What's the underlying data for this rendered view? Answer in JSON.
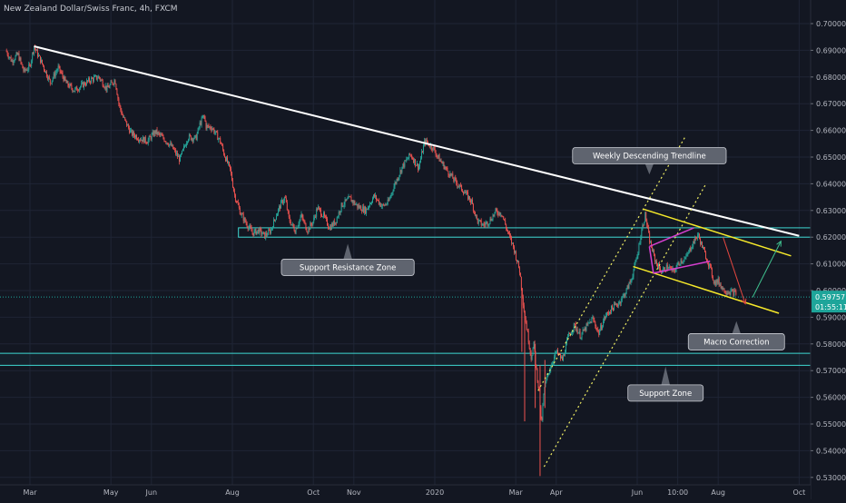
{
  "header": {
    "symbol_title": "New Zealand Dollar/Swiss Franc, 4h, FXCM"
  },
  "colors": {
    "background": "#131722",
    "grid": "#1f2535",
    "candle_up": "#26a69a",
    "candle_down": "#ef5350",
    "trendline": "#ffffff",
    "zone_line": "#3fd8d3",
    "channel_dotted": "#f0ee63",
    "channel_solid": "#f5e82a",
    "flag": "#d63fd0",
    "arrow_down": "#e2463f",
    "arrow_up": "#3fbf8e",
    "price_tag": "#1ea59a",
    "label_box": "#5f646f",
    "axis_text": "#b4b7c0"
  },
  "chart_data": {
    "type": "candlestick",
    "title": "New Zealand Dollar/Swiss Franc, 4h, FXCM",
    "ylim": [
      0.5293,
      0.7072
    ],
    "y_ticks": [
      "0.70000",
      "0.69000",
      "0.68000",
      "0.67000",
      "0.66000",
      "0.65000",
      "0.64000",
      "0.63000",
      "0.62000",
      "0.61000",
      "0.60000",
      "0.59000",
      "0.58000",
      "0.57000",
      "0.56000",
      "0.55000",
      "0.54000",
      "0.53000"
    ],
    "y_tick_values": [
      0.7,
      0.69,
      0.68,
      0.67,
      0.66,
      0.65,
      0.64,
      0.63,
      0.62,
      0.61,
      0.6,
      0.59,
      0.58,
      0.57,
      0.56,
      0.55,
      0.54,
      0.53
    ],
    "x_ticks": [
      {
        "label": "Mar",
        "t": 0.0
      },
      {
        "label": "May",
        "t": 2.0
      },
      {
        "label": "Jun",
        "t": 3.0
      },
      {
        "label": "Aug",
        "t": 5.0
      },
      {
        "label": "Oct",
        "t": 7.0
      },
      {
        "label": "Nov",
        "t": 8.0
      },
      {
        "label": "2020",
        "t": 10.0
      },
      {
        "label": "Mar",
        "t": 12.0
      },
      {
        "label": "Apr",
        "t": 13.0
      },
      {
        "label": "Jun",
        "t": 15.0
      },
      {
        "label": "10:00",
        "t": 16.0
      },
      {
        "label": "Aug",
        "t": 17.0
      },
      {
        "label": "Oct",
        "t": 19.0
      }
    ],
    "price_path": [
      [
        -0.6,
        0.69
      ],
      [
        -0.45,
        0.686
      ],
      [
        -0.3,
        0.6885
      ],
      [
        -0.15,
        0.682
      ],
      [
        0.0,
        0.684
      ],
      [
        0.1,
        0.6915
      ],
      [
        0.3,
        0.685
      ],
      [
        0.5,
        0.678
      ],
      [
        0.7,
        0.6835
      ],
      [
        0.9,
        0.6775
      ],
      [
        1.1,
        0.675
      ],
      [
        1.3,
        0.677
      ],
      [
        1.5,
        0.679
      ],
      [
        1.7,
        0.68
      ],
      [
        1.9,
        0.6755
      ],
      [
        2.1,
        0.679
      ],
      [
        2.2,
        0.6695
      ],
      [
        2.3,
        0.665
      ],
      [
        2.5,
        0.659
      ],
      [
        2.7,
        0.657
      ],
      [
        2.9,
        0.656
      ],
      [
        3.1,
        0.6595
      ],
      [
        3.3,
        0.657
      ],
      [
        3.5,
        0.654
      ],
      [
        3.7,
        0.649
      ],
      [
        3.9,
        0.6575
      ],
      [
        4.1,
        0.657
      ],
      [
        4.2,
        0.6625
      ],
      [
        4.3,
        0.6655
      ],
      [
        4.35,
        0.6615
      ],
      [
        4.5,
        0.661
      ],
      [
        4.6,
        0.6585
      ],
      [
        4.7,
        0.656
      ],
      [
        4.8,
        0.651
      ],
      [
        4.95,
        0.645
      ],
      [
        5.05,
        0.636
      ],
      [
        5.2,
        0.629
      ],
      [
        5.35,
        0.625
      ],
      [
        5.5,
        0.6215
      ],
      [
        5.65,
        0.6225
      ],
      [
        5.8,
        0.6205
      ],
      [
        5.95,
        0.6225
      ],
      [
        6.1,
        0.629
      ],
      [
        6.2,
        0.6325
      ],
      [
        6.3,
        0.635
      ],
      [
        6.4,
        0.6265
      ],
      [
        6.55,
        0.6225
      ],
      [
        6.7,
        0.628
      ],
      [
        6.85,
        0.6225
      ],
      [
        7.0,
        0.626
      ],
      [
        7.1,
        0.631
      ],
      [
        7.25,
        0.628
      ],
      [
        7.4,
        0.6235
      ],
      [
        7.55,
        0.626
      ],
      [
        7.7,
        0.632
      ],
      [
        7.9,
        0.6345
      ],
      [
        8.1,
        0.6315
      ],
      [
        8.3,
        0.63
      ],
      [
        8.5,
        0.6355
      ],
      [
        8.7,
        0.6315
      ],
      [
        8.85,
        0.633
      ],
      [
        9.0,
        0.6395
      ],
      [
        9.2,
        0.6465
      ],
      [
        9.4,
        0.651
      ],
      [
        9.6,
        0.646
      ],
      [
        9.75,
        0.656
      ],
      [
        9.95,
        0.6535
      ],
      [
        10.1,
        0.6495
      ],
      [
        10.3,
        0.645
      ],
      [
        10.5,
        0.641
      ],
      [
        10.7,
        0.6375
      ],
      [
        10.9,
        0.6335
      ],
      [
        11.05,
        0.626
      ],
      [
        11.2,
        0.6245
      ],
      [
        11.35,
        0.626
      ],
      [
        11.5,
        0.6295
      ],
      [
        11.65,
        0.629
      ],
      [
        11.8,
        0.622
      ],
      [
        11.95,
        0.616
      ],
      [
        12.1,
        0.607
      ],
      [
        12.2,
        0.593
      ],
      [
        12.3,
        0.583
      ],
      [
        12.38,
        0.575
      ],
      [
        12.45,
        0.58
      ],
      [
        12.5,
        0.571
      ],
      [
        12.58,
        0.562
      ],
      [
        12.63,
        0.549
      ],
      [
        12.7,
        0.563
      ],
      [
        12.8,
        0.569
      ],
      [
        12.9,
        0.573
      ],
      [
        13.0,
        0.577
      ],
      [
        13.15,
        0.574
      ],
      [
        13.3,
        0.583
      ],
      [
        13.45,
        0.587
      ],
      [
        13.6,
        0.583
      ],
      [
        13.75,
        0.5865
      ],
      [
        13.9,
        0.5895
      ],
      [
        14.05,
        0.584
      ],
      [
        14.2,
        0.59
      ],
      [
        14.35,
        0.593
      ],
      [
        14.55,
        0.5955
      ],
      [
        14.7,
        0.599
      ],
      [
        14.85,
        0.604
      ],
      [
        15.0,
        0.613
      ],
      [
        15.1,
        0.622
      ],
      [
        15.2,
        0.6285
      ],
      [
        15.3,
        0.619
      ],
      [
        15.45,
        0.611
      ],
      [
        15.6,
        0.607
      ],
      [
        15.75,
        0.609
      ],
      [
        15.9,
        0.607
      ],
      [
        16.05,
        0.611
      ],
      [
        16.2,
        0.612
      ],
      [
        16.35,
        0.617
      ],
      [
        16.5,
        0.621
      ],
      [
        16.65,
        0.6145
      ],
      [
        16.8,
        0.6085
      ],
      [
        16.9,
        0.603
      ],
      [
        17.0,
        0.6035
      ],
      [
        17.15,
        0.6
      ],
      [
        17.3,
        0.5995
      ],
      [
        17.45,
        0.599
      ]
    ],
    "spike_wicks": [
      [
        12.15,
        0.577,
        0.601
      ],
      [
        12.22,
        0.551,
        0.592
      ],
      [
        12.48,
        0.556,
        0.58
      ],
      [
        12.6,
        0.5305,
        0.572
      ],
      [
        12.72,
        0.556,
        0.574
      ]
    ],
    "last_price": "0.59757",
    "last_price_value": 0.59757,
    "countdown": "01:55:11",
    "trendline": [
      [
        0.1,
        0.6915
      ],
      [
        19.0,
        0.6205
      ]
    ],
    "zones": {
      "support_resistance": [
        0.6235,
        0.62
      ],
      "support": [
        0.5765,
        0.572
      ],
      "current_line": 0.59757
    },
    "ascending_channel": [
      [
        [
          12.7,
          0.534
        ],
        [
          16.7,
          0.64
        ]
      ],
      [
        [
          12.55,
          0.5625
        ],
        [
          16.2,
          0.658
        ]
      ]
    ],
    "descending_channel": [
      [
        [
          15.15,
          0.6305
        ],
        [
          18.8,
          0.613
        ]
      ],
      [
        [
          14.9,
          0.609
        ],
        [
          18.5,
          0.5915
        ]
      ]
    ],
    "flag": [
      [
        [
          15.3,
          0.6165
        ],
        [
          16.4,
          0.6235
        ]
      ],
      [
        [
          15.4,
          0.6065
        ],
        [
          16.8,
          0.611
        ]
      ]
    ],
    "arrow_down": [
      [
        17.12,
        0.62
      ],
      [
        17.67,
        0.595
      ]
    ],
    "arrow_up": [
      [
        17.85,
        0.5975
      ],
      [
        18.55,
        0.6185
      ]
    ],
    "annotations": [
      {
        "text": "Weekly Descending Trendline",
        "t": 15.3,
        "v": 0.6505,
        "target_t": 15.3,
        "target_v": 0.6435,
        "dir": "down"
      },
      {
        "text": "Support Resistance Zone",
        "t": 7.85,
        "v": 0.6087,
        "target_t": 7.85,
        "target_v": 0.6175,
        "dir": "up"
      },
      {
        "text": "Macro Correction",
        "t": 17.45,
        "v": 0.5808,
        "target_t": 17.45,
        "target_v": 0.5885,
        "dir": "up"
      },
      {
        "text": "Support Zone",
        "t": 15.7,
        "v": 0.5616,
        "target_t": 15.7,
        "target_v": 0.5715,
        "dir": "up"
      }
    ]
  }
}
